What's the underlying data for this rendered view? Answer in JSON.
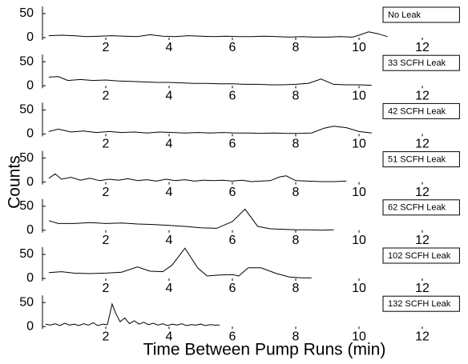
{
  "chart_data": [
    {
      "type": "line",
      "x": [
        0.2,
        0.6,
        1,
        1.4,
        1.8,
        2.2,
        2.6,
        3,
        3.4,
        3.8,
        4.2,
        4.6,
        5,
        5.4,
        5.8,
        6.2,
        6.6,
        7,
        7.4,
        7.8,
        8.2,
        8.6,
        9,
        9.4,
        9.8,
        10,
        10.3,
        10.6,
        10.9
      ],
      "series": [
        {
          "name": "No Leak",
          "color": "#000000",
          "values": [
            4,
            5,
            4,
            2,
            3,
            4,
            3,
            2,
            6,
            3,
            2,
            4,
            3,
            2,
            3,
            2,
            2,
            3,
            2,
            1,
            2,
            1,
            1,
            2,
            1,
            5,
            12,
            8,
            2
          ]
        }
      ],
      "xlim": [
        0,
        13.2
      ],
      "ylim": [
        -5,
        65
      ],
      "xticks": [
        2,
        4,
        6,
        8,
        10,
        12
      ],
      "yticks": [
        0,
        50
      ],
      "legend": "upper right"
    },
    {
      "type": "line",
      "x": [
        0.2,
        0.5,
        0.8,
        1.2,
        1.6,
        2,
        2.4,
        2.8,
        3.2,
        3.6,
        4,
        4.4,
        4.8,
        5.2,
        5.6,
        6,
        6.4,
        6.8,
        7.2,
        7.6,
        8,
        8.4,
        8.8,
        9.2,
        9.6,
        10,
        10.4
      ],
      "series": [
        {
          "name": "33 SCFH Leak",
          "color": "#000000",
          "values": [
            18,
            19,
            11,
            13,
            11,
            12,
            10,
            9,
            8,
            7,
            7,
            6,
            5,
            5,
            4,
            4,
            3,
            3,
            2,
            2,
            3,
            5,
            14,
            3,
            2,
            2,
            1
          ]
        }
      ],
      "xlim": [
        0,
        13.2
      ],
      "ylim": [
        -5,
        65
      ],
      "xticks": [
        2,
        4,
        6,
        8,
        10,
        12
      ],
      "yticks": [
        0,
        50
      ],
      "legend": "upper right"
    },
    {
      "type": "line",
      "x": [
        0.2,
        0.5,
        0.9,
        1.3,
        1.7,
        2.1,
        2.5,
        2.9,
        3.3,
        3.7,
        4.1,
        4.5,
        4.9,
        5.3,
        5.7,
        6.1,
        6.5,
        6.9,
        7.3,
        7.7,
        8.1,
        8.5,
        8.9,
        9.2,
        9.6,
        10,
        10.4
      ],
      "series": [
        {
          "name": "42 SCFH Leak",
          "color": "#000000",
          "values": [
            5,
            10,
            4,
            6,
            3,
            5,
            3,
            4,
            2,
            4,
            3,
            2,
            3,
            2,
            3,
            2,
            2,
            1,
            2,
            1,
            1,
            2,
            12,
            16,
            13,
            5,
            2
          ]
        }
      ],
      "xlim": [
        0,
        13.2
      ],
      "ylim": [
        -5,
        65
      ],
      "xticks": [
        2,
        4,
        6,
        8,
        10,
        12
      ],
      "yticks": [
        0,
        50
      ],
      "legend": "upper right"
    },
    {
      "type": "line",
      "ylabel": "Counts",
      "x": [
        0.2,
        0.4,
        0.6,
        0.9,
        1.2,
        1.5,
        1.8,
        2.1,
        2.4,
        2.7,
        3,
        3.3,
        3.6,
        3.9,
        4.2,
        4.5,
        4.8,
        5.1,
        5.4,
        5.7,
        6,
        6.3,
        6.6,
        6.9,
        7.2,
        7.5,
        7.7,
        8,
        8.4,
        8.8,
        9.2,
        9.6
      ],
      "series": [
        {
          "name": "51 SCFH Leak",
          "color": "#000000",
          "values": [
            8,
            17,
            6,
            10,
            4,
            8,
            3,
            6,
            4,
            7,
            3,
            5,
            2,
            6,
            3,
            5,
            2,
            4,
            3,
            4,
            2,
            4,
            1,
            2,
            3,
            11,
            13,
            3,
            2,
            1,
            1,
            2
          ]
        }
      ],
      "xlim": [
        0,
        13.2
      ],
      "ylim": [
        -5,
        65
      ],
      "xticks": [
        2,
        4,
        6,
        8,
        10,
        12
      ],
      "yticks": [
        0,
        50
      ],
      "legend": "upper right"
    },
    {
      "type": "line",
      "x": [
        0.2,
        0.5,
        1,
        1.5,
        2,
        2.5,
        3,
        3.5,
        4,
        4.5,
        5,
        5.5,
        6,
        6.4,
        6.8,
        7.2,
        7.6,
        8,
        8.4,
        8.8,
        9.2
      ],
      "series": [
        {
          "name": "62 SCFH Leak",
          "color": "#000000",
          "values": [
            20,
            14,
            14,
            16,
            14,
            15,
            13,
            12,
            10,
            8,
            5,
            4,
            18,
            44,
            8,
            3,
            2,
            1,
            1,
            0,
            1
          ]
        }
      ],
      "xlim": [
        0,
        13.2
      ],
      "ylim": [
        -5,
        65
      ],
      "xticks": [
        2,
        4,
        6,
        8,
        10,
        12
      ],
      "yticks": [
        0,
        50
      ],
      "legend": "upper right"
    },
    {
      "type": "line",
      "x": [
        0.2,
        0.6,
        1,
        1.5,
        2,
        2.5,
        3,
        3.4,
        3.8,
        4.1,
        4.5,
        4.9,
        5.2,
        5.6,
        6,
        6.2,
        6.5,
        6.9,
        7.4,
        7.8,
        8.2,
        8.5
      ],
      "series": [
        {
          "name": "102 SCFH Leak",
          "color": "#000000",
          "values": [
            12,
            14,
            11,
            10,
            11,
            13,
            24,
            15,
            14,
            28,
            63,
            22,
            5,
            7,
            8,
            5,
            22,
            22,
            10,
            3,
            1,
            1
          ]
        }
      ],
      "xlim": [
        0,
        13.2
      ],
      "ylim": [
        -5,
        65
      ],
      "xticks": [
        2,
        4,
        6,
        8,
        10,
        12
      ],
      "yticks": [
        0,
        50
      ],
      "legend": "upper right"
    },
    {
      "type": "line",
      "xlabel": "Time Between Pump Runs (min)",
      "x": [
        0.1,
        0.25,
        0.4,
        0.55,
        0.7,
        0.85,
        1,
        1.15,
        1.3,
        1.45,
        1.6,
        1.75,
        1.9,
        2.05,
        2.2,
        2.3,
        2.45,
        2.6,
        2.75,
        2.9,
        3.05,
        3.2,
        3.35,
        3.5,
        3.65,
        3.8,
        3.95,
        4.1,
        4.25,
        4.4,
        4.55,
        4.7,
        4.85,
        5,
        5.15,
        5.3,
        5.45,
        5.6
      ],
      "series": [
        {
          "name": "132 SCFH Leak",
          "color": "#000000",
          "values": [
            5,
            3,
            6,
            2,
            7,
            3,
            5,
            2,
            6,
            3,
            8,
            2,
            5,
            4,
            47,
            30,
            10,
            18,
            6,
            12,
            5,
            9,
            4,
            7,
            3,
            6,
            2,
            5,
            3,
            6,
            2,
            4,
            3,
            5,
            2,
            4,
            3,
            3
          ]
        }
      ],
      "xlim": [
        0,
        13.2
      ],
      "ylim": [
        -5,
        65
      ],
      "xticks": [
        2,
        4,
        6,
        8,
        10,
        12
      ],
      "yticks": [
        0,
        50
      ],
      "legend": "upper right"
    }
  ]
}
